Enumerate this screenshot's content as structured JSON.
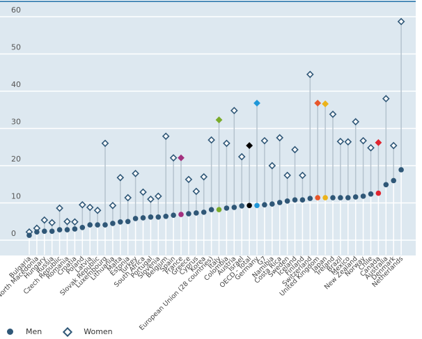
{
  "chart_data": {
    "type": "scatter",
    "subtype": "dot-plot",
    "title": "",
    "xlabel": "",
    "ylabel": "",
    "ylim": [
      0,
      60
    ],
    "yticks": [
      0,
      10,
      20,
      30,
      40,
      50,
      60
    ],
    "grid": true,
    "legend_position": "bottom-left",
    "categories": [
      "Bulgaria",
      "North Macedonia",
      "Hungary",
      "Russia",
      "Czech Republic",
      "Romania",
      "Croatia",
      "Poland",
      "Latvia",
      "Slovak Republic",
      "Luxembourg",
      "Lithuania",
      "Malta",
      "Estonia",
      "Turkey",
      "South Africa",
      "Portugal",
      "Slovenia",
      "Belgium",
      "Spain",
      "France",
      "Greece",
      "Cyprus",
      "Korea",
      "European Union (28 countries)",
      "Italy",
      "Colombia",
      "Austria",
      "Israel",
      "OECD - Total",
      "Germany",
      "G7",
      "Namibia",
      "Costa Rica",
      "Sweden",
      "Iceland",
      "Finland",
      "Switzerland",
      "United Kingdom",
      "Japan",
      "Ireland",
      "Brazil",
      "Mexico",
      "New Zealand",
      "Norway",
      "Chile",
      "Canada",
      "Australia",
      "Denmark",
      "Netherlands"
    ],
    "series": [
      {
        "name": "Men",
        "marker": "circle",
        "values": [
          1.3,
          2.2,
          2.4,
          2.4,
          2.8,
          2.8,
          3.0,
          3.4,
          4.1,
          4.1,
          4.1,
          4.5,
          4.9,
          5.0,
          5.8,
          6.0,
          6.2,
          6.2,
          6.4,
          6.7,
          6.9,
          7.1,
          7.3,
          7.5,
          8.2,
          8.2,
          8.6,
          8.8,
          9.2,
          9.3,
          9.3,
          9.5,
          9.7,
          10.1,
          10.5,
          10.8,
          10.8,
          11.2,
          11.4,
          11.4,
          11.4,
          11.4,
          11.4,
          11.6,
          11.8,
          12.4,
          12.6,
          14.9,
          16.0,
          18.9
        ]
      },
      {
        "name": "Women",
        "marker": "diamond",
        "values": [
          2.2,
          3.2,
          5.4,
          4.7,
          8.6,
          5.0,
          4.9,
          9.5,
          8.8,
          8.0,
          26.0,
          9.3,
          16.8,
          11.4,
          17.9,
          12.9,
          11.0,
          11.8,
          27.9,
          22.1,
          22.1,
          16.3,
          13.1,
          17.0,
          26.9,
          32.3,
          26.0,
          34.8,
          22.4,
          25.4,
          36.8,
          26.7,
          20.0,
          27.5,
          17.4,
          24.3,
          17.4,
          44.5,
          36.8,
          36.6,
          33.8,
          26.5,
          26.4,
          31.8,
          26.7,
          24.8,
          26.2,
          38.0,
          25.4,
          58.7
        ]
      }
    ],
    "highlights": {
      "France": "#a3307f",
      "Italy": "#7aab2a",
      "OECD - Total": "#000000",
      "Germany": "#1f97d8",
      "United Kingdom": "#e8572b",
      "Japan": "#ecb31a",
      "Canada": "#e0252f"
    },
    "default_color": "#2f5777",
    "label_color": "#444444"
  },
  "legend": {
    "men_label": "Men",
    "women_label": "Women"
  }
}
